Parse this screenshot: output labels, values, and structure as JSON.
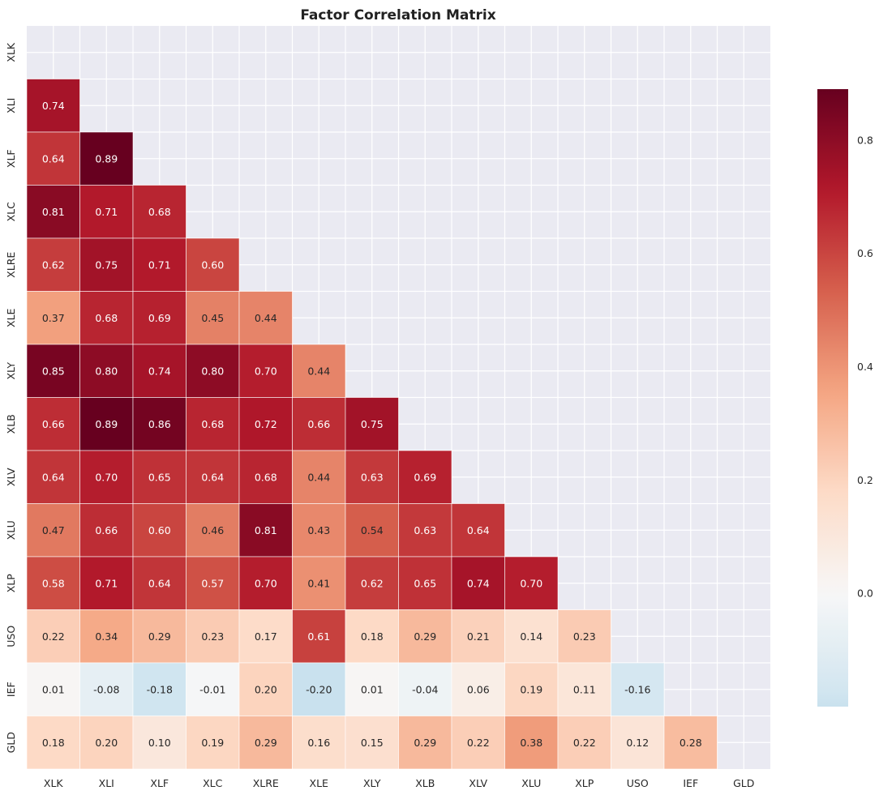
{
  "chart_data": {
    "type": "heatmap",
    "title": "Factor Correlation Matrix",
    "labels": [
      "XLK",
      "XLI",
      "XLF",
      "XLC",
      "XLRE",
      "XLE",
      "XLY",
      "XLB",
      "XLV",
      "XLU",
      "XLP",
      "USO",
      "IEF",
      "GLD"
    ],
    "mask": "upper triangle including diagonal",
    "lower_triangle": [
      [],
      [
        0.74
      ],
      [
        0.64,
        0.89
      ],
      [
        0.81,
        0.71,
        0.68
      ],
      [
        0.62,
        0.75,
        0.71,
        0.6
      ],
      [
        0.37,
        0.68,
        0.69,
        0.45,
        0.44
      ],
      [
        0.85,
        0.8,
        0.74,
        0.8,
        0.7,
        0.44
      ],
      [
        0.66,
        0.89,
        0.86,
        0.68,
        0.72,
        0.66,
        0.75
      ],
      [
        0.64,
        0.7,
        0.65,
        0.64,
        0.68,
        0.44,
        0.63,
        0.69
      ],
      [
        0.47,
        0.66,
        0.6,
        0.46,
        0.81,
        0.43,
        0.54,
        0.63,
        0.64
      ],
      [
        0.58,
        0.71,
        0.64,
        0.57,
        0.7,
        0.41,
        0.62,
        0.65,
        0.74,
        0.7
      ],
      [
        0.22,
        0.34,
        0.29,
        0.23,
        0.17,
        0.61,
        0.18,
        0.29,
        0.21,
        0.14,
        0.23
      ],
      [
        0.01,
        -0.08,
        -0.18,
        -0.01,
        0.2,
        -0.2,
        0.01,
        -0.04,
        0.06,
        0.19,
        0.11,
        -0.16
      ],
      [
        0.18,
        0.2,
        0.1,
        0.19,
        0.29,
        0.16,
        0.15,
        0.29,
        0.22,
        0.38,
        0.22,
        0.12,
        0.28
      ]
    ],
    "colormap": "RdBu_r",
    "center": 0,
    "colorbar_range": [
      -0.2,
      0.89
    ],
    "colorbar_ticks": [
      "0.0",
      "0.2",
      "0.4",
      "0.6",
      "0.8"
    ],
    "colorbar_tick_values": [
      0.0,
      0.2,
      0.4,
      0.6,
      0.8
    ],
    "grid": true,
    "background": "#eaeaf2"
  }
}
